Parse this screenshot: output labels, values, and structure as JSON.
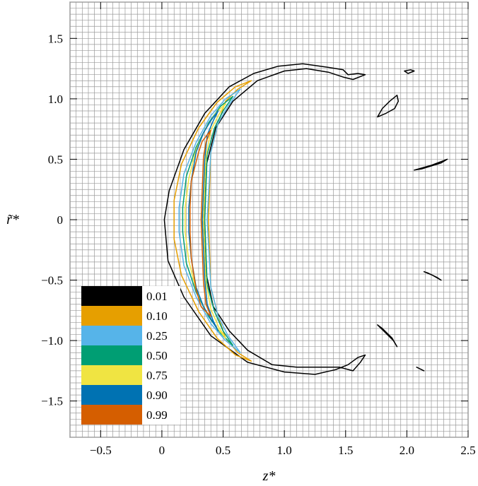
{
  "chart_data": {
    "type": "contour",
    "xlabel": "z*",
    "ylabel": "r̃*",
    "xlim": [
      -0.75,
      2.5
    ],
    "ylim": [
      -1.8,
      1.8
    ],
    "x_ticks": [
      -0.5,
      0,
      0.5,
      1.0,
      1.5,
      2.0,
      2.5
    ],
    "x_tick_labels": [
      "−0.5",
      "0",
      "0.5",
      "1.0",
      "1.5",
      "2.0",
      "2.5"
    ],
    "y_ticks": [
      1.5,
      1.0,
      0.5,
      0,
      -0.5,
      -1.0,
      -1.5
    ],
    "y_tick_labels": [
      "1.5",
      "1.0",
      "0.5",
      "0",
      "−0.5",
      "−1.0",
      "−1.5"
    ],
    "grid": true,
    "legend": {
      "placement": "bottom-left",
      "entries": [
        {
          "label": "0.01",
          "color": "#000000"
        },
        {
          "label": "0.10",
          "color": "#E69F00"
        },
        {
          "label": "0.25",
          "color": "#56B4E9"
        },
        {
          "label": "0.50",
          "color": "#009E73"
        },
        {
          "label": "0.75",
          "color": "#F0E442"
        },
        {
          "label": "0.90",
          "color": "#0072B2"
        },
        {
          "label": "0.99",
          "color": "#D55E00"
        }
      ]
    },
    "contours": [
      {
        "level": "0.01",
        "color": "#000000",
        "points": [
          [
            1.66,
            1.2
          ],
          [
            1.6,
            1.21
          ],
          [
            1.52,
            1.2
          ],
          [
            1.48,
            1.24
          ],
          [
            1.36,
            1.26
          ],
          [
            1.15,
            1.29
          ],
          [
            0.95,
            1.27
          ],
          [
            0.75,
            1.21
          ],
          [
            0.55,
            1.1
          ],
          [
            0.35,
            0.88
          ],
          [
            0.18,
            0.58
          ],
          [
            0.06,
            0.24
          ],
          [
            0.02,
            0
          ],
          [
            0.05,
            -0.34
          ],
          [
            0.18,
            -0.64
          ],
          [
            0.4,
            -0.96
          ],
          [
            0.7,
            -1.18
          ],
          [
            1.0,
            -1.26
          ],
          [
            1.25,
            -1.28
          ],
          [
            1.42,
            -1.24
          ],
          [
            1.52,
            -1.2
          ],
          [
            1.6,
            -1.14
          ],
          [
            1.66,
            -1.12
          ],
          [
            1.62,
            -1.18
          ],
          [
            1.56,
            -1.25
          ],
          [
            1.45,
            -1.22
          ],
          [
            1.3,
            -1.22
          ],
          [
            1.1,
            -1.22
          ],
          [
            0.9,
            -1.2
          ],
          [
            0.7,
            -1.08
          ],
          [
            0.55,
            -0.92
          ],
          [
            0.42,
            -0.72
          ],
          [
            0.36,
            -0.44
          ],
          [
            0.34,
            0
          ],
          [
            0.36,
            0.44
          ],
          [
            0.44,
            0.76
          ],
          [
            0.58,
            0.98
          ],
          [
            0.78,
            1.15
          ],
          [
            1.0,
            1.23
          ],
          [
            1.18,
            1.25
          ],
          [
            1.36,
            1.22
          ],
          [
            1.48,
            1.18
          ],
          [
            1.56,
            1.16
          ],
          [
            1.66,
            1.2
          ]
        ]
      },
      {
        "level": "0.01",
        "color": "#000000",
        "points": [
          [
            1.76,
            0.85
          ],
          [
            1.8,
            0.92
          ],
          [
            1.86,
            0.98
          ],
          [
            1.92,
            1.03
          ],
          [
            1.93,
            0.98
          ],
          [
            1.9,
            0.92
          ],
          [
            1.83,
            0.88
          ],
          [
            1.76,
            0.85
          ]
        ]
      },
      {
        "level": "0.01",
        "color": "#000000",
        "points": [
          [
            1.98,
            1.23
          ],
          [
            2.03,
            1.24
          ],
          [
            2.06,
            1.23
          ],
          [
            2.01,
            1.21
          ],
          [
            1.98,
            1.23
          ]
        ]
      },
      {
        "level": "0.01",
        "color": "#000000",
        "points": [
          [
            2.06,
            0.41
          ],
          [
            2.2,
            0.45
          ],
          [
            2.33,
            0.5
          ],
          [
            2.28,
            0.47
          ],
          [
            2.12,
            0.42
          ],
          [
            2.06,
            0.41
          ]
        ]
      },
      {
        "level": "0.01",
        "color": "#000000",
        "points": [
          [
            2.14,
            -0.43
          ],
          [
            2.21,
            -0.46
          ],
          [
            2.28,
            -0.5
          ],
          [
            2.25,
            -0.48
          ],
          [
            2.17,
            -0.44
          ],
          [
            2.14,
            -0.43
          ]
        ]
      },
      {
        "level": "0.01",
        "color": "#000000",
        "points": [
          [
            1.76,
            -0.87
          ],
          [
            1.82,
            -0.93
          ],
          [
            1.89,
            -1.0
          ],
          [
            1.92,
            -1.05
          ],
          [
            1.88,
            -0.98
          ],
          [
            1.8,
            -0.9
          ],
          [
            1.76,
            -0.87
          ]
        ]
      },
      {
        "level": "0.01",
        "color": "#000000",
        "points": [
          [
            2.08,
            -1.22
          ],
          [
            2.14,
            -1.25
          ],
          [
            2.1,
            -1.23
          ],
          [
            2.08,
            -1.22
          ]
        ]
      },
      {
        "level": "0.10",
        "color": "#E69F00",
        "points": [
          [
            0.73,
            1.15
          ],
          [
            0.6,
            1.1
          ],
          [
            0.45,
            0.97
          ],
          [
            0.3,
            0.76
          ],
          [
            0.16,
            0.46
          ],
          [
            0.1,
            0.16
          ],
          [
            0.1,
            -0.16
          ],
          [
            0.16,
            -0.46
          ],
          [
            0.3,
            -0.76
          ],
          [
            0.45,
            -0.98
          ],
          [
            0.6,
            -1.12
          ],
          [
            0.73,
            -1.17
          ],
          [
            0.62,
            -1.1
          ],
          [
            0.52,
            -0.98
          ],
          [
            0.46,
            -0.8
          ],
          [
            0.4,
            -0.56
          ],
          [
            0.38,
            0
          ],
          [
            0.4,
            0.56
          ],
          [
            0.46,
            0.8
          ],
          [
            0.52,
            0.98
          ],
          [
            0.62,
            1.08
          ],
          [
            0.73,
            1.15
          ]
        ]
      },
      {
        "level": "0.25",
        "color": "#56B4E9",
        "points": [
          [
            0.64,
            1.08
          ],
          [
            0.52,
            1.0
          ],
          [
            0.4,
            0.86
          ],
          [
            0.28,
            0.64
          ],
          [
            0.18,
            0.38
          ],
          [
            0.14,
            0.1
          ],
          [
            0.14,
            -0.1
          ],
          [
            0.18,
            -0.38
          ],
          [
            0.28,
            -0.64
          ],
          [
            0.4,
            -0.86
          ],
          [
            0.52,
            -1.0
          ],
          [
            0.64,
            -1.1
          ],
          [
            0.54,
            -0.96
          ],
          [
            0.46,
            -0.8
          ],
          [
            0.4,
            -0.56
          ],
          [
            0.37,
            0
          ],
          [
            0.4,
            0.56
          ],
          [
            0.46,
            0.8
          ],
          [
            0.54,
            0.94
          ],
          [
            0.64,
            1.08
          ]
        ]
      },
      {
        "level": "0.50",
        "color": "#009E73",
        "points": [
          [
            0.58,
            1.02
          ],
          [
            0.48,
            0.94
          ],
          [
            0.38,
            0.8
          ],
          [
            0.28,
            0.6
          ],
          [
            0.2,
            0.36
          ],
          [
            0.17,
            0.1
          ],
          [
            0.17,
            -0.1
          ],
          [
            0.2,
            -0.36
          ],
          [
            0.28,
            -0.6
          ],
          [
            0.38,
            -0.8
          ],
          [
            0.48,
            -0.94
          ],
          [
            0.58,
            -1.04
          ],
          [
            0.5,
            -0.92
          ],
          [
            0.43,
            -0.76
          ],
          [
            0.37,
            -0.54
          ],
          [
            0.35,
            0
          ],
          [
            0.37,
            0.54
          ],
          [
            0.43,
            0.76
          ],
          [
            0.5,
            0.9
          ],
          [
            0.58,
            1.02
          ]
        ]
      },
      {
        "level": "0.75",
        "color": "#F0E442",
        "points": [
          [
            0.52,
            0.96
          ],
          [
            0.44,
            0.88
          ],
          [
            0.36,
            0.76
          ],
          [
            0.28,
            0.58
          ],
          [
            0.22,
            0.34
          ],
          [
            0.19,
            0.1
          ],
          [
            0.19,
            -0.1
          ],
          [
            0.22,
            -0.34
          ],
          [
            0.28,
            -0.58
          ],
          [
            0.36,
            -0.76
          ],
          [
            0.44,
            -0.88
          ],
          [
            0.52,
            -0.98
          ],
          [
            0.46,
            -0.88
          ],
          [
            0.4,
            -0.74
          ],
          [
            0.36,
            -0.52
          ],
          [
            0.34,
            0
          ],
          [
            0.36,
            0.52
          ],
          [
            0.4,
            0.74
          ],
          [
            0.46,
            0.86
          ],
          [
            0.52,
            0.96
          ]
        ]
      },
      {
        "level": "0.90",
        "color": "#0072B2",
        "points": [
          [
            0.46,
            0.9
          ],
          [
            0.4,
            0.82
          ],
          [
            0.34,
            0.72
          ],
          [
            0.28,
            0.56
          ],
          [
            0.24,
            0.32
          ],
          [
            0.22,
            0.1
          ],
          [
            0.22,
            -0.1
          ],
          [
            0.24,
            -0.32
          ],
          [
            0.28,
            -0.56
          ],
          [
            0.34,
            -0.72
          ],
          [
            0.4,
            -0.82
          ],
          [
            0.46,
            -0.92
          ],
          [
            0.42,
            -0.84
          ],
          [
            0.37,
            -0.7
          ],
          [
            0.35,
            -0.5
          ],
          [
            0.33,
            0
          ],
          [
            0.35,
            0.5
          ],
          [
            0.37,
            0.7
          ],
          [
            0.42,
            0.82
          ],
          [
            0.46,
            0.9
          ]
        ]
      },
      {
        "level": "0.99",
        "color": "#D55E00",
        "points": [
          [
            0.4,
            0.74
          ],
          [
            0.33,
            0.65
          ],
          [
            0.3,
            0.56
          ],
          [
            0.24,
            0.32
          ],
          [
            0.23,
            0.1
          ],
          [
            0.23,
            -0.1
          ],
          [
            0.24,
            -0.32
          ],
          [
            0.28,
            -0.58
          ],
          [
            0.32,
            -0.72
          ],
          [
            0.4,
            -0.8
          ],
          [
            0.36,
            -0.7
          ],
          [
            0.34,
            -0.52
          ],
          [
            0.32,
            0
          ],
          [
            0.34,
            0.52
          ],
          [
            0.36,
            0.64
          ],
          [
            0.4,
            0.74
          ]
        ]
      }
    ]
  }
}
